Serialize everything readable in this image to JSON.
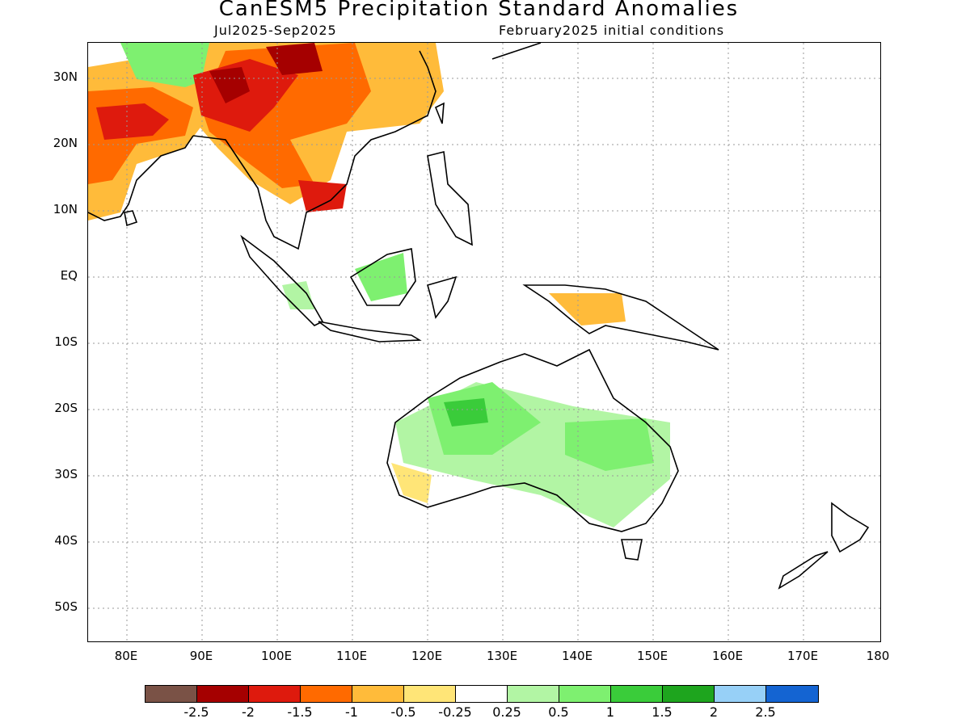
{
  "title": "CanESM5 Precipitation Standard Anomalies",
  "subtitle_left": "Jul2025-Sep2025",
  "subtitle_right": "February2025 initial conditions",
  "y_ticks": [
    "30N",
    "20N",
    "10N",
    "EQ",
    "10S",
    "20S",
    "30S",
    "40S",
    "50S"
  ],
  "x_ticks": [
    "80E",
    "90E",
    "100E",
    "110E",
    "120E",
    "130E",
    "140E",
    "150E",
    "160E",
    "170E",
    "180"
  ],
  "colorbar": {
    "colors": [
      "#7a5246",
      "#a50000",
      "#de1a0d",
      "#ff6a00",
      "#ffbb3a",
      "#ffe577",
      "#ffffff",
      "#b2f5a4",
      "#7ef070",
      "#3acc3a",
      "#1ea51e",
      "#97d0f7",
      "#1464d2"
    ],
    "labels": [
      "-2.5",
      "-2",
      "-1.5",
      "-1",
      "-0.5",
      "-0.25",
      "0.25",
      "0.5",
      "1",
      "1.5",
      "2",
      "2.5"
    ]
  },
  "legend_values_note": null
}
